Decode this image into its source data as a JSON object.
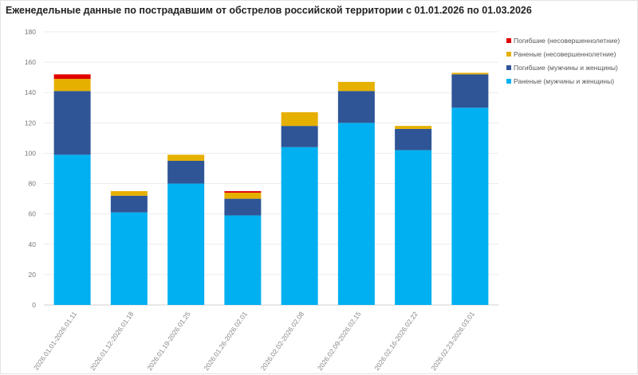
{
  "chart_data": {
    "type": "bar",
    "stacked": true,
    "title": "Еженедельные данные по пострадавшим от обстрелов российской территории с 01.01.2026 по 01.03.2026",
    "xlabel": "",
    "ylabel": "",
    "ylim": [
      0,
      180
    ],
    "yticks": [
      0,
      20,
      40,
      60,
      80,
      100,
      120,
      140,
      160,
      180
    ],
    "grid": true,
    "legend_position": "top-right",
    "categories": [
      "2026.01.01-2026.01.11",
      "2026.01.12-2026.01.18",
      "2026.01.19-2026.01.25",
      "2026.01.26-2026.02.01",
      "2026.02.02-2026.02.08",
      "2026.02.09-2026.02.15",
      "2026.02.16-2026.02.22",
      "2026.02.23-2026.03.01"
    ],
    "series": [
      {
        "name": "Раненые (мужчины и женщины)",
        "color": "#00b0f0",
        "values": [
          99,
          61,
          80,
          59,
          104,
          120,
          102,
          130
        ]
      },
      {
        "name": "Погибшие (мужчины и женщины)",
        "color": "#2f5597",
        "values": [
          42,
          11,
          15,
          11,
          14,
          21,
          14,
          22
        ]
      },
      {
        "name": "Раненые (несовершеннолетние)",
        "color": "#e6b000",
        "values": [
          8,
          3,
          4,
          4,
          9,
          6,
          2,
          1
        ]
      },
      {
        "name": "Погибшие (несовершеннолетние)",
        "color": "#e00000",
        "values": [
          3,
          0,
          0,
          1,
          0,
          0,
          0,
          0
        ]
      }
    ],
    "legend_order": [
      3,
      2,
      1,
      0
    ]
  }
}
